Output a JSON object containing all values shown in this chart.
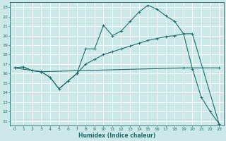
{
  "xlabel": "Humidex (Indice chaleur)",
  "xlim": [
    -0.5,
    23.5
  ],
  "ylim": [
    10.5,
    23.5
  ],
  "xticks": [
    0,
    1,
    2,
    3,
    4,
    5,
    6,
    7,
    8,
    9,
    10,
    11,
    12,
    13,
    14,
    15,
    16,
    17,
    18,
    19,
    20,
    21,
    22,
    23
  ],
  "yticks": [
    11,
    12,
    13,
    14,
    15,
    16,
    17,
    18,
    19,
    20,
    21,
    22,
    23
  ],
  "bg_color": "#cce8e8",
  "grid_color": "#b8d8d8",
  "line_color": "#1e6b6b",
  "line1_x": [
    0,
    1,
    2,
    3,
    4,
    5,
    6,
    7,
    8,
    9,
    10,
    11,
    12,
    13,
    14,
    15,
    16,
    17,
    18,
    19,
    20,
    21,
    22,
    23
  ],
  "line1_y": [
    16.6,
    16.7,
    16.3,
    16.2,
    15.6,
    14.4,
    15.2,
    16.0,
    18.6,
    18.6,
    21.1,
    20.0,
    20.5,
    21.5,
    22.5,
    23.2,
    22.8,
    22.1,
    21.5,
    20.2,
    16.5,
    13.5,
    12.0,
    10.7
  ],
  "line2_x": [
    0,
    1,
    2,
    3,
    4,
    5,
    6,
    7,
    8,
    9,
    10,
    11,
    12,
    13,
    14,
    15,
    16,
    17,
    18,
    19,
    20,
    23
  ],
  "line2_y": [
    16.6,
    16.7,
    16.3,
    16.2,
    15.6,
    14.4,
    15.2,
    16.0,
    17.0,
    17.5,
    18.0,
    18.3,
    18.6,
    18.9,
    19.2,
    19.5,
    19.7,
    19.9,
    20.0,
    20.2,
    20.2,
    10.7
  ],
  "line3_x": [
    0,
    3,
    19,
    23
  ],
  "line3_y": [
    16.6,
    16.2,
    16.6,
    16.6
  ]
}
